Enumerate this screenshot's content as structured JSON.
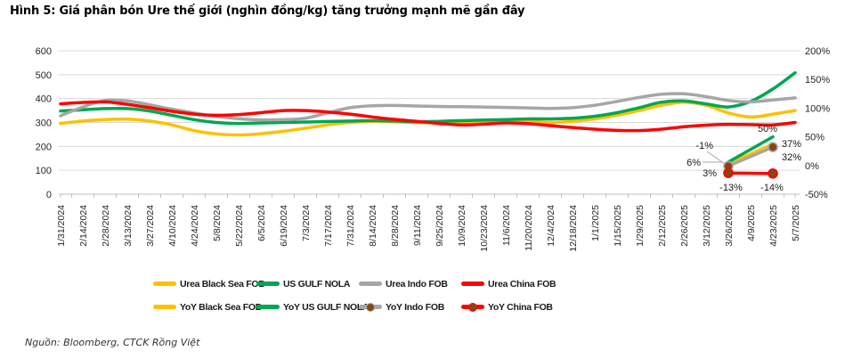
{
  "title": "Hình 5: Giá phân bón Ure thế giới (nghìn đồng/kg) tăng trưởng mạnh mẽ gần đây",
  "source": "Nguồn: Bloomberg, CTCK Rồng Việt",
  "colors": {
    "grid": "#D9D9D9",
    "axis": "#BFBFBF",
    "marker_brown": "#8B4513"
  },
  "chart_data": {
    "type": "line",
    "title": "Giá phân bón Ure thế giới (nghìn đồng/kg)",
    "grid": true,
    "legend_position": "bottom",
    "categories": [
      "1/31/2024",
      "2/14/2024",
      "2/28/2024",
      "3/13/2024",
      "3/27/2024",
      "4/10/2024",
      "4/24/2024",
      "5/8/2024",
      "5/22/2024",
      "6/5/2024",
      "6/19/2024",
      "7/3/2024",
      "7/17/2024",
      "7/31/2024",
      "8/14/2024",
      "8/28/2024",
      "9/11/2024",
      "9/25/2024",
      "10/9/2024",
      "10/23/2024",
      "11/6/2024",
      "11/20/2024",
      "12/4/2024",
      "12/18/2024",
      "1/1/2025",
      "1/15/2025",
      "1/29/2025",
      "2/12/2025",
      "2/26/2025",
      "3/12/2025",
      "3/26/2025",
      "4/9/2025",
      "4/23/2025",
      "5/7/2025"
    ],
    "left_axis": {
      "ticks": [
        "0",
        "100",
        "200",
        "300",
        "400",
        "500",
        "600"
      ],
      "range": [
        0,
        600
      ]
    },
    "right_axis": {
      "ticks": [
        "-50%",
        "0%",
        "50%",
        "100%",
        "150%",
        "200%"
      ],
      "range": [
        -50,
        200
      ]
    },
    "price_series": [
      {
        "name": "Urea Black Sea FOB",
        "color": "#FFC000",
        "values": [
          296,
          306,
          312,
          314,
          306,
          290,
          266,
          252,
          248,
          253,
          263,
          276,
          290,
          300,
          305,
          303,
          300,
          300,
          302,
          305,
          308,
          306,
          300,
          305,
          315,
          330,
          350,
          372,
          385,
          372,
          340,
          323,
          335,
          350
        ]
      },
      {
        "name": "US GULF NOLA",
        "color": "#00A651",
        "values": [
          348,
          353,
          358,
          358,
          348,
          330,
          312,
          300,
          296,
          298,
          300,
          302,
          304,
          306,
          308,
          306,
          303,
          305,
          308,
          310,
          312,
          315,
          315,
          318,
          326,
          341,
          362,
          385,
          390,
          378,
          365,
          388,
          440,
          508
        ]
      },
      {
        "name": "Urea Indo FOB",
        "color": "#A6A6A6",
        "values": [
          328,
          365,
          392,
          390,
          374,
          356,
          340,
          326,
          316,
          311,
          312,
          318,
          340,
          362,
          370,
          371,
          369,
          367,
          366,
          365,
          363,
          361,
          359,
          362,
          372,
          388,
          405,
          418,
          420,
          408,
          392,
          386,
          394,
          403
        ]
      },
      {
        "name": "Urea China FOB",
        "color": "#FF0000",
        "values": [
          378,
          384,
          386,
          376,
          362,
          347,
          335,
          330,
          333,
          341,
          350,
          350,
          344,
          335,
          323,
          313,
          305,
          296,
          290,
          293,
          298,
          295,
          287,
          279,
          272,
          267,
          266,
          272,
          282,
          289,
          292,
          291,
          290,
          300
        ]
      }
    ],
    "yoy_series": [
      {
        "name": "YoY Black Sea FOB",
        "color": "#FFC000",
        "marker": false,
        "point_dates": [
          "3/26/2025",
          "4/23/2025"
        ],
        "values_pct": [
          3,
          37
        ],
        "labels": [
          "3%",
          "37%"
        ]
      },
      {
        "name": "YoY US GULF NOLA",
        "color": "#00A651",
        "marker": false,
        "point_dates": [
          "3/26/2025",
          "4/23/2025"
        ],
        "values_pct": [
          6,
          50
        ],
        "labels": [
          "6%",
          "50%"
        ]
      },
      {
        "name": "YoY Indo FOB",
        "color": "#A6A6A6",
        "marker": true,
        "point_dates": [
          "3/26/2025",
          "4/23/2025"
        ],
        "values_pct": [
          -1,
          32
        ],
        "labels": [
          "-1%",
          "32%"
        ]
      },
      {
        "name": "YoY China FOB",
        "color": "#FF0000",
        "marker": true,
        "point_dates": [
          "3/26/2025",
          "4/23/2025"
        ],
        "values_pct": [
          -13,
          -14
        ],
        "labels": [
          "-13%",
          "-14%"
        ]
      }
    ]
  }
}
